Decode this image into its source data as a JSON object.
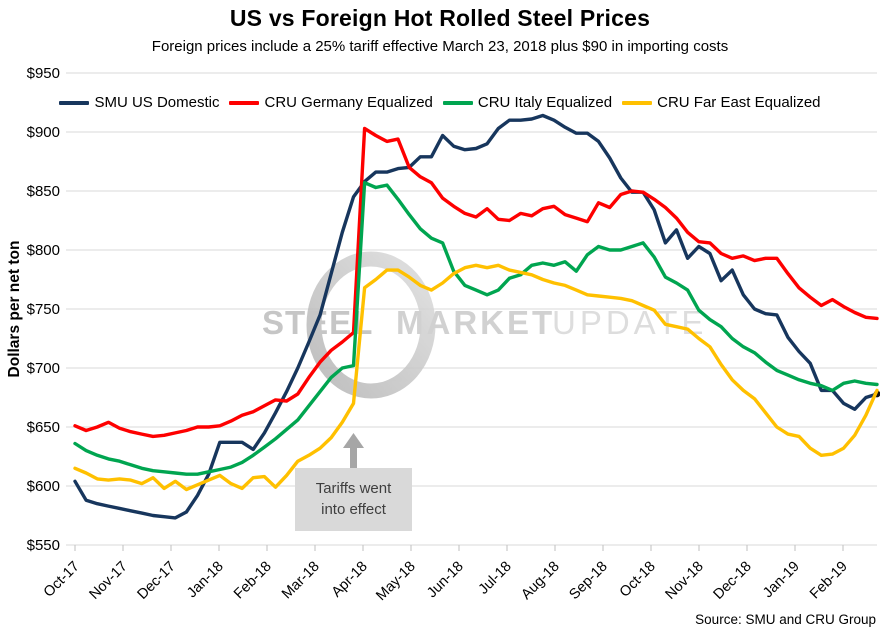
{
  "title": "US vs Foreign Hot Rolled Steel Prices",
  "subtitle": "Foreign prices include a 25% tariff effective March 23, 2018 plus $90 in importing costs",
  "source": "Source: SMU and CRU Group",
  "watermark": {
    "word1": "STEEL",
    "word2": "MARKET",
    "word3": "UPDATE"
  },
  "annotation": {
    "line1": "Tariffs went",
    "line2": "into effect"
  },
  "y_axis": {
    "title": "Dollars per net ton",
    "prefix": "$"
  },
  "chart_data": {
    "type": "line",
    "title": "US vs Foreign Hot Rolled Steel Prices",
    "xlabel": "",
    "ylabel": "Dollars per net ton",
    "ylim": [
      550,
      950
    ],
    "ytick_step": 50,
    "grid": "horizontal",
    "legend_position": "top",
    "x_months": [
      "Oct-17",
      "Nov-17",
      "Dec-17",
      "Jan-18",
      "Feb-18",
      "Mar-18",
      "Apr-18",
      "May-18",
      "Jun-18",
      "Jul-18",
      "Aug-18",
      "Sep-18",
      "Oct-18",
      "Nov-18",
      "Dec-18",
      "Jan-19",
      "Feb-19"
    ],
    "x_note": "weekly data, index 0 = Oct-17, ~4.31 weeks per month tick, series end ~3 weeks after Feb-19",
    "annotation": {
      "text": "Tariffs went into effect",
      "points_to_month": "Apr-18"
    },
    "series": [
      {
        "name": "SMU US Domestic",
        "color": "#17365d",
        "end_marker": true,
        "values": [
          604,
          588,
          585,
          583,
          581,
          579,
          577,
          575,
          574,
          573,
          578,
          592,
          610,
          637,
          637,
          637,
          631,
          645,
          662,
          680,
          700,
          722,
          745,
          780,
          815,
          845,
          858,
          866,
          866,
          869,
          870,
          879,
          879,
          897,
          888,
          885,
          886,
          890,
          903,
          910,
          910,
          911,
          914,
          910,
          904,
          899,
          899,
          892,
          878,
          861,
          849,
          849,
          834,
          806,
          817,
          793,
          803,
          797,
          774,
          783,
          762,
          750,
          746,
          745,
          726,
          714,
          704,
          681,
          681,
          670,
          665,
          675,
          678
        ]
      },
      {
        "name": "CRU Germany Equalized",
        "color": "#fe0000",
        "end_marker": false,
        "values": [
          651,
          647,
          650,
          654,
          649,
          646,
          644,
          642,
          643,
          645,
          647,
          650,
          650,
          651,
          655,
          660,
          663,
          668,
          673,
          672,
          678,
          692,
          705,
          715,
          722,
          730,
          903,
          897,
          892,
          894,
          870,
          862,
          857,
          844,
          837,
          831,
          828,
          835,
          826,
          825,
          831,
          829,
          835,
          837,
          830,
          827,
          824,
          840,
          836,
          847,
          850,
          849,
          843,
          836,
          827,
          815,
          807,
          806,
          797,
          793,
          795,
          791,
          793,
          793,
          780,
          768,
          760,
          753,
          758,
          752,
          747,
          743,
          742
        ]
      },
      {
        "name": "CRU Italy Equalized",
        "color": "#00a550",
        "end_marker": false,
        "values": [
          636,
          630,
          626,
          623,
          621,
          618,
          615,
          613,
          612,
          611,
          610,
          610,
          612,
          614,
          616,
          620,
          626,
          633,
          640,
          648,
          656,
          668,
          680,
          692,
          700,
          702,
          857,
          853,
          855,
          843,
          830,
          818,
          810,
          806,
          782,
          770,
          766,
          762,
          766,
          776,
          779,
          787,
          789,
          787,
          790,
          782,
          796,
          803,
          800,
          800,
          803,
          806,
          794,
          777,
          772,
          766,
          749,
          741,
          735,
          725,
          718,
          713,
          705,
          698,
          694,
          690,
          687,
          685,
          681,
          687,
          689,
          687,
          686
        ]
      },
      {
        "name": "CRU Far East Equalized",
        "color": "#ffc000",
        "end_marker": false,
        "values": [
          615,
          611,
          606,
          605,
          606,
          605,
          602,
          607,
          598,
          604,
          597,
          601,
          605,
          609,
          602,
          598,
          607,
          608,
          599,
          609,
          621,
          626,
          632,
          641,
          654,
          670,
          768,
          775,
          783,
          783,
          777,
          770,
          766,
          772,
          780,
          785,
          787,
          785,
          787,
          783,
          781,
          779,
          775,
          772,
          770,
          766,
          762,
          761,
          760,
          759,
          757,
          753,
          749,
          737,
          735,
          733,
          725,
          718,
          703,
          690,
          681,
          674,
          662,
          650,
          644,
          642,
          632,
          626,
          627,
          632,
          643,
          660,
          681
        ]
      }
    ]
  }
}
